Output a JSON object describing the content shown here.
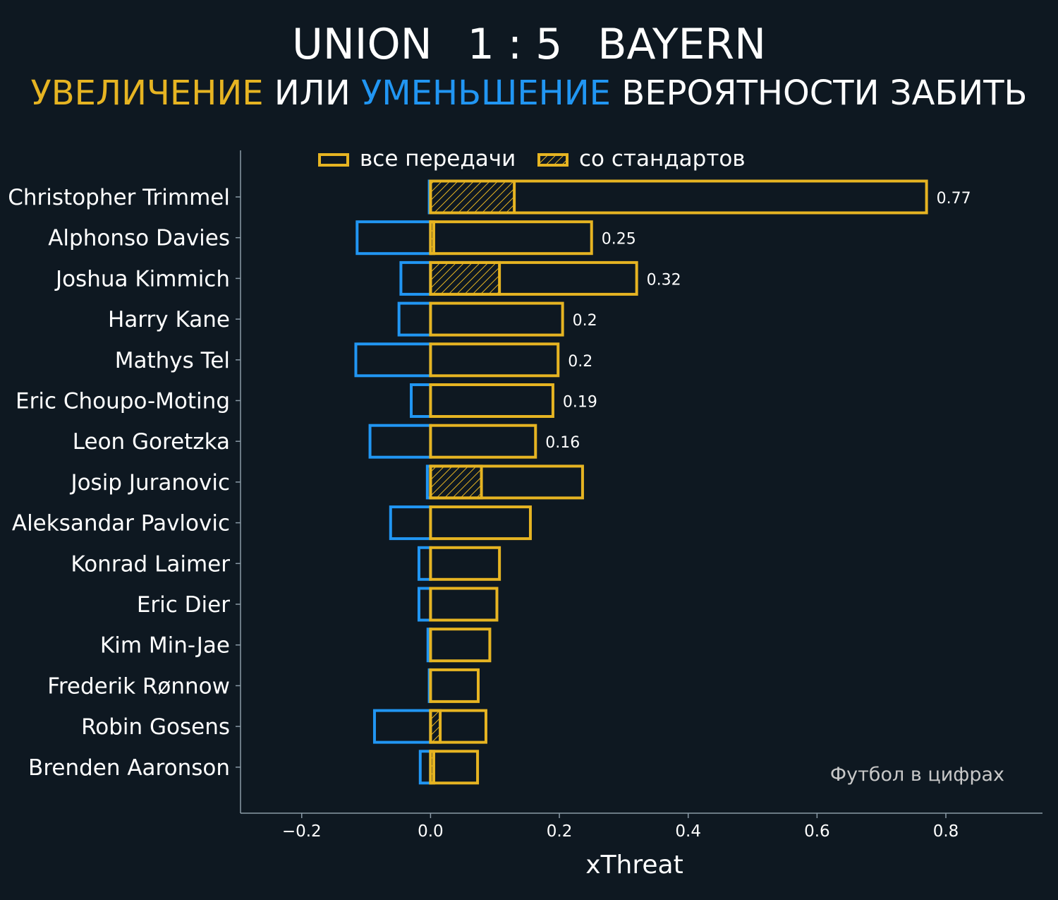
{
  "header": {
    "home_team": "UNION",
    "score": "1 : 5",
    "away_team": "BAYERN",
    "subtitle_part1": "УВЕЛИЧЕНИЕ",
    "subtitle_part2": " ИЛИ ",
    "subtitle_part3": "УМЕНЬШЕНИЕ",
    "subtitle_part4": " ВЕРОЯТНОСТИ ЗАБИТЬ"
  },
  "credit": "Футбол в цифрах",
  "colors": {
    "background": "#0e1821",
    "increase": "#e6b422",
    "decrease": "#2196f3",
    "axis": "#8a9aa6"
  },
  "chart_data": {
    "type": "bar",
    "orientation": "horizontal",
    "xlabel": "xThreat",
    "xlim": [
      -0.295,
      0.95
    ],
    "xticks": [
      -0.2,
      0.0,
      0.2,
      0.4,
      0.6,
      0.8
    ],
    "xtick_labels": [
      "−0.2",
      "0.0",
      "0.2",
      "0.4",
      "0.6",
      "0.8"
    ],
    "grid": false,
    "legend_placement": "top",
    "legend": [
      "все передачи",
      "со стандартов"
    ],
    "categories": [
      "Christopher Trimmel",
      "Alphonso Davies",
      "Joshua Kimmich",
      "Harry Kane",
      "Mathys Tel",
      "Eric Choupo-Moting",
      "Leon Goretzka",
      "Josip Juranovic",
      "Aleksandar Pavlovic",
      "Konrad Laimer",
      "Eric Dier",
      "Kim Min-Jae",
      "Frederik Rønnow",
      "Robin Gosens",
      "Brenden Aaronson"
    ],
    "series": [
      {
        "name": "все передачи",
        "role": "increase",
        "values": [
          0.77,
          0.25,
          0.32,
          0.205,
          0.198,
          0.19,
          0.163,
          0.236,
          0.155,
          0.107,
          0.103,
          0.092,
          0.074,
          0.086,
          0.073
        ]
      },
      {
        "name": "со стандартов",
        "role": "increase_set_pieces",
        "values": [
          0.13,
          0.005,
          0.107,
          0,
          0,
          0,
          0,
          0.079,
          0,
          0,
          0,
          0,
          0,
          0.015,
          0.005
        ]
      },
      {
        "role": "decrease",
        "values": [
          -0.002,
          -0.114,
          -0.046,
          -0.049,
          -0.116,
          -0.03,
          -0.094,
          -0.005,
          -0.062,
          -0.018,
          -0.018,
          -0.004,
          -0.002,
          -0.087,
          -0.016
        ]
      }
    ],
    "value_labels": [
      "0.77",
      "0.25",
      "0.32",
      "0.2",
      "0.2",
      "0.19",
      "0.16",
      "",
      "",
      "",
      "",
      "",
      "",
      "",
      ""
    ]
  }
}
